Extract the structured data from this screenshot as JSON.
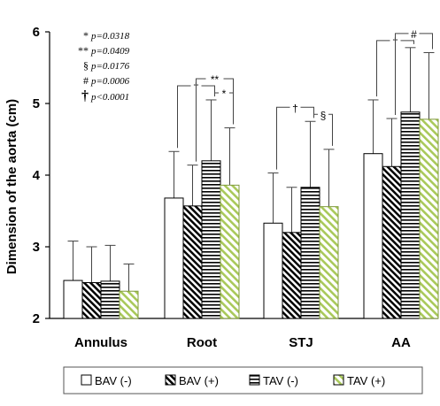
{
  "chart_data": {
    "type": "bar",
    "title": "",
    "xlabel": "",
    "ylabel": "Dimension of the aorta (cm)",
    "ylim": [
      2,
      6
    ],
    "yticks": [
      "2",
      "3",
      "4",
      "5",
      "6"
    ],
    "grid": false,
    "legend_position": "bottom",
    "categories": [
      "Annulus",
      "Root",
      "STJ",
      "AA"
    ],
    "series": [
      {
        "name": "BAV (-)",
        "fill": "white",
        "values": [
          2.53,
          3.68,
          3.33,
          4.3
        ],
        "errors": [
          0.55,
          0.65,
          0.7,
          0.75
        ]
      },
      {
        "name": "BAV (+)",
        "fill": "diagonal-black",
        "values": [
          2.5,
          3.57,
          3.2,
          4.12
        ],
        "errors": [
          0.5,
          0.57,
          0.63,
          0.67
        ]
      },
      {
        "name": "TAV (-)",
        "fill": "horizontal-lines",
        "values": [
          2.52,
          4.2,
          3.83,
          4.88
        ],
        "errors": [
          0.5,
          0.85,
          0.92,
          0.9
        ]
      },
      {
        "name": "TAV (+)",
        "fill": "diagonal-green",
        "values": [
          2.38,
          3.86,
          3.56,
          4.78
        ],
        "errors": [
          0.38,
          0.8,
          0.8,
          0.93
        ]
      }
    ],
    "notes": [
      {
        "symbol": "*",
        "text": "p=0.0318"
      },
      {
        "symbol": "**",
        "text": "p=0.0409"
      },
      {
        "symbol": "§",
        "text": "p=0.0176"
      },
      {
        "symbol": "#",
        "text": "p=0.0006"
      },
      {
        "symbol": "†",
        "text": "p<0.0001"
      }
    ],
    "significance": [
      {
        "category": "Root",
        "from": 0,
        "to": 2,
        "symbol": "†"
      },
      {
        "category": "Root",
        "from": 1,
        "to": 3,
        "symbol": "**"
      },
      {
        "category": "Root",
        "from": 2,
        "to": 3,
        "symbol": "*"
      },
      {
        "category": "STJ",
        "from": 0,
        "to": 2,
        "symbol": "†"
      },
      {
        "category": "STJ",
        "from": 2,
        "to": 3,
        "symbol": "§"
      },
      {
        "category": "AA",
        "from": 0,
        "to": 2,
        "symbol": "†"
      },
      {
        "category": "AA",
        "from": 1,
        "to": 3,
        "symbol": "#"
      }
    ]
  },
  "colors": {
    "green_hatch": "#a9c95a",
    "axis": "#000000"
  }
}
